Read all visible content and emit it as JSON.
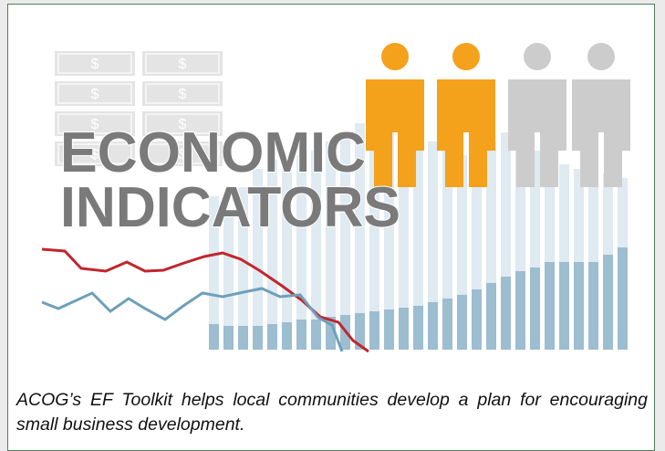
{
  "illustration": {
    "bill_symbol": "$",
    "title_line1": "ECONOMIC",
    "title_line2": "INDICATORS"
  },
  "caption": "ACOG’s EF Toolkit helps local communities develop a plan for encouraging small business development."
}
